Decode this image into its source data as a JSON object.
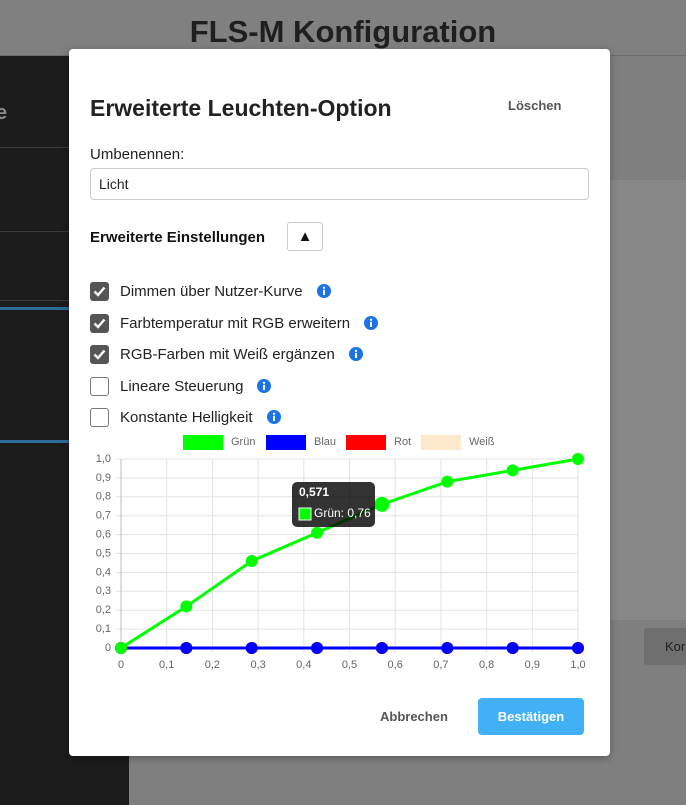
{
  "background": {
    "title": "FLS-M Konfiguration",
    "sidebar_fragment": "e",
    "button_fragment": "Kor"
  },
  "dialog": {
    "title": "Erweiterte Leuchten-Option",
    "delete_button": "Löschen",
    "rename_label": "Umbenennen:",
    "rename_value": "Licht",
    "advanced_heading": "Erweiterte Einstellungen",
    "toggle_button": "▲",
    "options": [
      {
        "label": "Dimmen über Nutzer-Kurve",
        "checked": true
      },
      {
        "label": "Farbtemperatur mit RGB erweitern",
        "checked": true
      },
      {
        "label": "RGB-Farben mit Weiß ergänzen",
        "checked": true
      },
      {
        "label": "Lineare Steuerung",
        "checked": false
      },
      {
        "label": "Konstante Helligkeit",
        "checked": false
      }
    ],
    "cancel_button": "Abbrechen",
    "confirm_button": "Bestätigen"
  },
  "chart_data": {
    "type": "line",
    "x": [
      0,
      0.143,
      0.286,
      0.429,
      0.571,
      0.714,
      0.857,
      1
    ],
    "series": [
      {
        "name": "Grün",
        "color": "#00ff00",
        "values": [
          0,
          0.22,
          0.46,
          0.61,
          0.76,
          0.88,
          0.94,
          1
        ]
      },
      {
        "name": "Blau",
        "color": "#0000ff",
        "values": [
          0,
          0,
          0,
          0,
          0,
          0,
          0,
          0
        ]
      },
      {
        "name": "Rot",
        "color": "#ff0000",
        "values": [
          0,
          0,
          0,
          0,
          0,
          0,
          0,
          0
        ]
      },
      {
        "name": "Weiß",
        "color": "#fde8cc",
        "values": [
          0,
          0,
          0,
          0,
          0,
          0,
          0,
          0
        ]
      }
    ],
    "xlim": [
      0,
      1
    ],
    "ylim": [
      0,
      1
    ],
    "xticks": [
      0,
      {
        "value": 0.1,
        "label": "0,1"
      },
      {
        "value": 0.2,
        "label": "0,2"
      },
      {
        "value": 0.3,
        "label": "0,3"
      },
      {
        "value": 0.4,
        "label": "0,4"
      },
      {
        "value": 0.5,
        "label": "0,5"
      },
      {
        "value": 0.6,
        "label": "0,6"
      },
      {
        "value": 0.7,
        "label": "0,7"
      },
      {
        "value": 0.8,
        "label": "0,8"
      },
      {
        "value": 0.9,
        "label": "0,9"
      },
      {
        "value": 1,
        "label": "1,0"
      }
    ],
    "yticks": [
      0,
      {
        "value": 0.1,
        "label": "0,1"
      },
      {
        "value": 0.2,
        "label": "0,2"
      },
      {
        "value": 0.3,
        "label": "0,3"
      },
      {
        "value": 0.4,
        "label": "0,4"
      },
      {
        "value": 0.5,
        "label": "0,5"
      },
      {
        "value": 0.6,
        "label": "0,6"
      },
      {
        "value": 0.7,
        "label": "0,7"
      },
      {
        "value": 0.8,
        "label": "0,8"
      },
      {
        "value": 0.9,
        "label": "0,9"
      },
      {
        "value": 1,
        "label": "1,0"
      }
    ],
    "grid": true,
    "legend": "top",
    "tooltip": {
      "title": "0,571",
      "label": "Grün: 0,76"
    }
  }
}
